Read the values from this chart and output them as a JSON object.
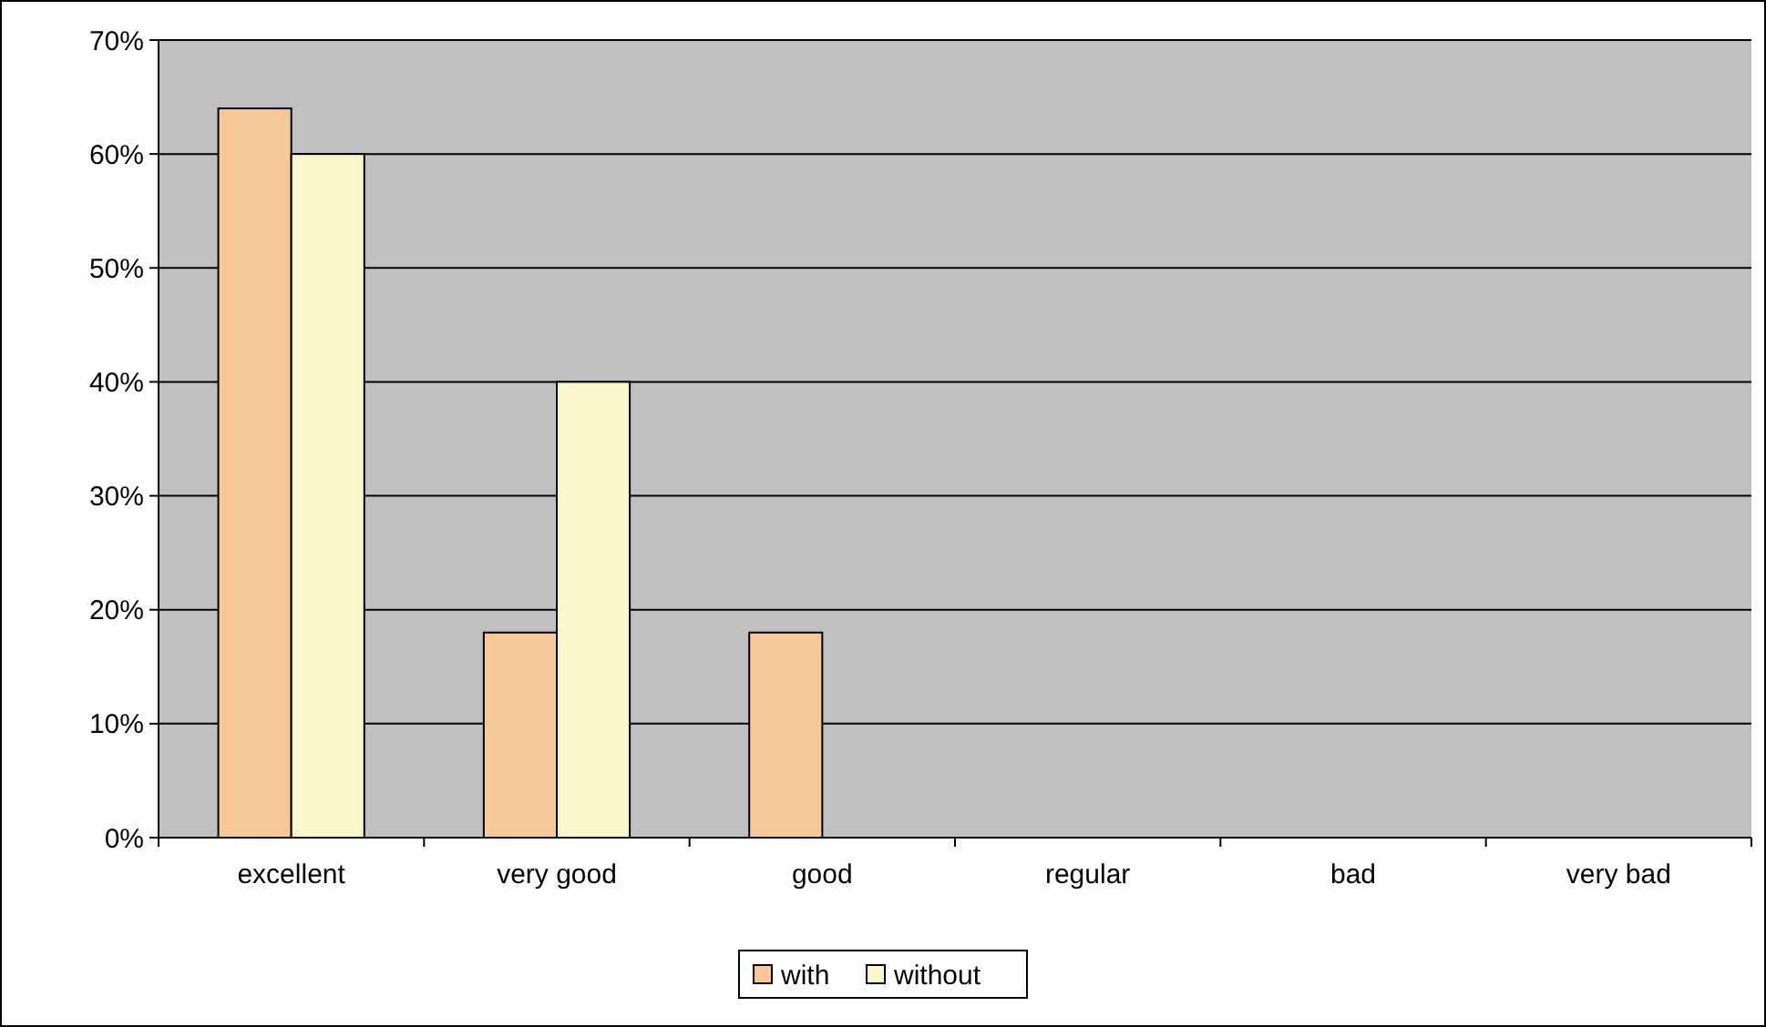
{
  "chart_data": {
    "type": "bar",
    "categories": [
      "excellent",
      "very good",
      "good",
      "regular",
      "bad",
      "very bad"
    ],
    "series": [
      {
        "name": "with",
        "color": "#f9c898",
        "values": [
          64,
          18,
          18,
          0,
          0,
          0
        ]
      },
      {
        "name": "without",
        "color": "#fbf7cc",
        "values": [
          60,
          40,
          0,
          0,
          0,
          0
        ]
      }
    ],
    "ylim": [
      0,
      70
    ],
    "yticks": [
      {
        "value": 0,
        "label": "0%"
      },
      {
        "value": 10,
        "label": "10%"
      },
      {
        "value": 20,
        "label": "20%"
      },
      {
        "value": 30,
        "label": "30%"
      },
      {
        "value": 40,
        "label": "40%"
      },
      {
        "value": 50,
        "label": "50%"
      },
      {
        "value": 60,
        "label": "60%"
      },
      {
        "value": 70,
        "label": "70%"
      }
    ],
    "grid": "y",
    "legend": "bottom"
  }
}
